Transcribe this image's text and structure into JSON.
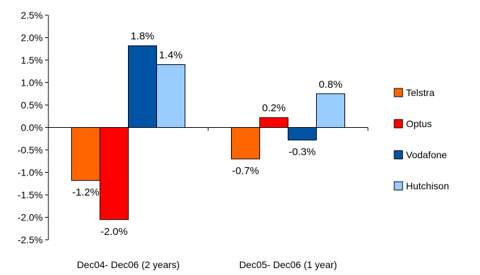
{
  "chart_data": {
    "type": "bar",
    "categories": [
      "Dec04- Dec06 (2 years)",
      "Dec05- Dec06 (1 year)"
    ],
    "series": [
      {
        "name": "Telstra",
        "values": [
          -1.2,
          -0.7
        ],
        "labels": [
          "-1.2%",
          "-0.7%"
        ],
        "color": "#FF6600"
      },
      {
        "name": "Optus",
        "values": [
          -2.0,
          0.2
        ],
        "labels": [
          "-2.0%",
          "0.2%"
        ],
        "color": "#FF0000"
      },
      {
        "name": "Vodafone",
        "values": [
          1.8,
          -0.3
        ],
        "labels": [
          "1.8%",
          "-0.3%"
        ],
        "color": "#0054A6"
      },
      {
        "name": "Hutchison",
        "values": [
          1.4,
          0.8
        ],
        "labels": [
          "1.4%",
          "0.8%"
        ],
        "color": "#99CCFF"
      }
    ],
    "bar_values_detail": [
      [
        -1.18,
        -0.7
      ],
      [
        -2.05,
        0.22
      ],
      [
        1.82,
        -0.28
      ],
      [
        1.4,
        0.75
      ]
    ],
    "ylim": [
      -2.5,
      2.5
    ],
    "yticks": [
      2.5,
      2.0,
      1.5,
      1.0,
      0.5,
      0.0,
      -0.5,
      -1.0,
      -1.5,
      -2.0,
      -2.5
    ],
    "ytick_labels": [
      "2.5%",
      "2.0%",
      "1.5%",
      "1.0%",
      "0.5%",
      "0.0%",
      "-0.5%",
      "-1.0%",
      "-1.5%",
      "-2.0%",
      "-2.5%"
    ],
    "title": "",
    "xlabel": "",
    "ylabel": "",
    "grid": false,
    "legend_position": "right"
  }
}
